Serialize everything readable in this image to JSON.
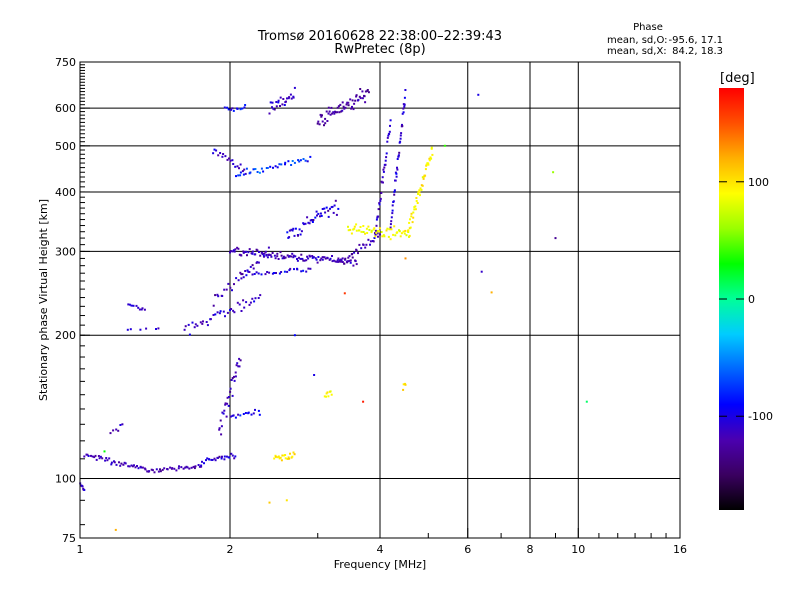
{
  "chart_data": {
    "type": "scatter",
    "title": "Tromsø 20160628 22:38:00–22:39:43",
    "subtitle": "RwPretec (8p)",
    "xlabel": "Frequency [MHz]",
    "ylabel": "Stationary phase Virtual Height [km]",
    "x_scale": "log",
    "y_scale": "log",
    "xlim": [
      1,
      16
    ],
    "ylim": [
      75,
      750
    ],
    "x_ticks": [
      1,
      2,
      4,
      6,
      8,
      10,
      16
    ],
    "y_ticks": [
      75,
      100,
      200,
      300,
      400,
      500,
      600,
      750
    ],
    "grid": true,
    "colorbar": {
      "label": "[deg]",
      "ticks": [
        100,
        0,
        -100
      ],
      "range": [
        -180,
        180
      ],
      "colors": [
        "#000000",
        "#3a0060",
        "#4b00b0",
        "#0000ff",
        "#0066ff",
        "#00ccff",
        "#00ff99",
        "#00ff00",
        "#99ff00",
        "#ffff00",
        "#ffb000",
        "#ff5000",
        "#ff0000"
      ]
    },
    "stats": {
      "heading": "Phase",
      "o_label": "mean, sd,O:",
      "o_values": "-95.6, 17.1",
      "x_label": "mean, sd,X:",
      "x_values": "84.2, 18.3"
    },
    "series": [
      {
        "segments": [
          {
            "f0": 1.0,
            "f1": 1.02,
            "h0": 98,
            "h1": 94,
            "n": 8,
            "hs": 0.02,
            "ph": -110,
            "ps": 20
          },
          {
            "f0": 1.02,
            "f1": 1.35,
            "h0": 112,
            "h1": 105,
            "n": 40,
            "hs": 0.018,
            "ph": -115,
            "ps": 18
          },
          {
            "f0": 1.35,
            "f1": 1.75,
            "h0": 104,
            "h1": 106,
            "n": 35,
            "hs": 0.015,
            "ph": -120,
            "ps": 18
          },
          {
            "f0": 1.75,
            "f1": 2.05,
            "h0": 108,
            "h1": 112,
            "n": 25,
            "hs": 0.02,
            "ph": -110,
            "ps": 25
          },
          {
            "f0": 1.9,
            "f1": 2.1,
            "h0": 125,
            "h1": 180,
            "n": 30,
            "hs": 0.07,
            "ph": -115,
            "ps": 18
          },
          {
            "f0": 2.0,
            "f1": 2.3,
            "h0": 135,
            "h1": 138,
            "n": 15,
            "hs": 0.02,
            "ph": -100,
            "ps": 25
          },
          {
            "f0": 1.15,
            "f1": 1.22,
            "h0": 125,
            "h1": 130,
            "n": 6,
            "hs": 0.02,
            "ph": -115,
            "ps": 15
          },
          {
            "f0": 1.25,
            "f1": 1.35,
            "h0": 233,
            "h1": 226,
            "n": 10,
            "hs": 0.01,
            "ph": -110,
            "ps": 12
          },
          {
            "f0": 1.24,
            "f1": 1.45,
            "h0": 205,
            "h1": 207,
            "n": 6,
            "hs": 0.01,
            "ph": -110,
            "ps": 15
          },
          {
            "f0": 1.62,
            "f1": 2.3,
            "h0": 205,
            "h1": 240,
            "n": 40,
            "hs": 0.05,
            "ph": -110,
            "ps": 22
          },
          {
            "f0": 1.85,
            "f1": 2.4,
            "h0": 235,
            "h1": 300,
            "n": 30,
            "hs": 0.04,
            "ph": -115,
            "ps": 20
          },
          {
            "f0": 2.0,
            "f1": 3.6,
            "h0": 300,
            "h1": 285,
            "n": 110,
            "hs": 0.025,
            "ph": -115,
            "ps": 22
          },
          {
            "f0": 2.1,
            "f1": 2.9,
            "h0": 268,
            "h1": 275,
            "n": 30,
            "hs": 0.015,
            "ph": -105,
            "ps": 30
          },
          {
            "f0": 2.6,
            "f1": 3.3,
            "h0": 325,
            "h1": 375,
            "n": 45,
            "hs": 0.06,
            "ph": -105,
            "ps": 30
          },
          {
            "f0": 3.3,
            "f1": 4.0,
            "h0": 285,
            "h1": 325,
            "n": 30,
            "hs": 0.03,
            "ph": -120,
            "ps": 18
          },
          {
            "f0": 3.9,
            "f1": 4.2,
            "h0": 320,
            "h1": 560,
            "n": 35,
            "hs": 0.04,
            "ph": -110,
            "ps": 20
          },
          {
            "f0": 4.2,
            "f1": 4.5,
            "h0": 340,
            "h1": 640,
            "n": 40,
            "hs": 0.04,
            "ph": -105,
            "ps": 25
          },
          {
            "f0": 1.85,
            "f1": 2.15,
            "h0": 490,
            "h1": 440,
            "n": 20,
            "hs": 0.04,
            "ph": -110,
            "ps": 20
          },
          {
            "f0": 2.05,
            "f1": 2.9,
            "h0": 432,
            "h1": 470,
            "n": 35,
            "hs": 0.025,
            "ph": -80,
            "ps": 40
          },
          {
            "f0": 1.95,
            "f1": 2.15,
            "h0": 595,
            "h1": 600,
            "n": 12,
            "hs": 0.02,
            "ph": -95,
            "ps": 30
          },
          {
            "f0": 2.4,
            "f1": 2.7,
            "h0": 600,
            "h1": 640,
            "n": 25,
            "hs": 0.04,
            "ph": -110,
            "ps": 20
          },
          {
            "f0": 3.0,
            "f1": 3.8,
            "h0": 560,
            "h1": 650,
            "n": 60,
            "hs": 0.05,
            "ph": -125,
            "ps": 18
          },
          {
            "f0": 3.45,
            "f1": 4.6,
            "h0": 335,
            "h1": 325,
            "n": 55,
            "hs": 0.04,
            "ph": 90,
            "ps": 20
          },
          {
            "f0": 4.55,
            "f1": 5.1,
            "h0": 330,
            "h1": 490,
            "n": 45,
            "hs": 0.05,
            "ph": 95,
            "ps": 18
          },
          {
            "f0": 2.45,
            "f1": 2.7,
            "h0": 110,
            "h1": 112,
            "n": 20,
            "hs": 0.025,
            "ph": 100,
            "ps": 15
          },
          {
            "f0": 3.1,
            "f1": 3.2,
            "h0": 150,
            "h1": 152,
            "n": 8,
            "hs": 0.02,
            "ph": 95,
            "ps": 15
          },
          {
            "f0": 4.45,
            "f1": 4.5,
            "h0": 155,
            "h1": 158,
            "n": 4,
            "hs": 0.02,
            "ph": 100,
            "ps": 15
          }
        ],
        "singles": [
          {
            "x": 1.12,
            "y": 114,
            "p": 30
          },
          {
            "x": 1.18,
            "y": 78,
            "p": 120
          },
          {
            "x": 2.4,
            "y": 89,
            "p": 110
          },
          {
            "x": 2.6,
            "y": 90,
            "p": 100
          },
          {
            "x": 3.7,
            "y": 145,
            "p": 170
          },
          {
            "x": 2.7,
            "y": 200,
            "p": -90
          },
          {
            "x": 2.95,
            "y": 165,
            "p": -100
          },
          {
            "x": 3.4,
            "y": 245,
            "p": 160
          },
          {
            "x": 6.3,
            "y": 640,
            "p": -100
          },
          {
            "x": 6.4,
            "y": 272,
            "p": -110
          },
          {
            "x": 6.7,
            "y": 246,
            "p": 120
          },
          {
            "x": 8.9,
            "y": 440,
            "p": 60
          },
          {
            "x": 9.0,
            "y": 320,
            "p": -130
          },
          {
            "x": 10.4,
            "y": 145,
            "p": 10
          },
          {
            "x": 4.5,
            "y": 290,
            "p": 130
          },
          {
            "x": 5.4,
            "y": 500,
            "p": 40
          }
        ]
      }
    ]
  }
}
